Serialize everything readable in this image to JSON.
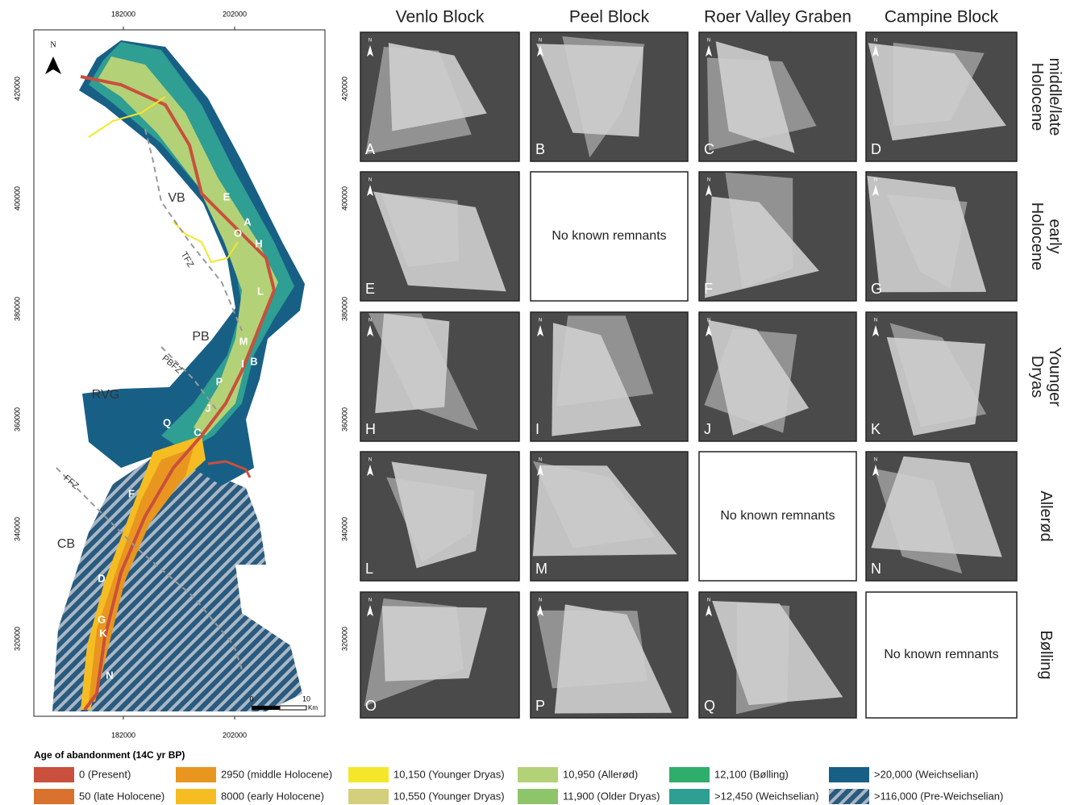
{
  "map": {
    "x_ticks": [
      182000,
      202000
    ],
    "y_ticks": [
      420000,
      400000,
      380000,
      360000,
      340000,
      320000
    ],
    "north": "N",
    "regions": [
      "VB",
      "PB",
      "RVG",
      "CB"
    ],
    "faults": [
      "TFZ",
      "PBFZ",
      "FFZ"
    ],
    "sites": [
      "E",
      "A",
      "O",
      "H",
      "L",
      "M",
      "I",
      "B",
      "P",
      "J",
      "Q",
      "C",
      "F",
      "D",
      "G",
      "K",
      "N"
    ],
    "scale": {
      "start": "0",
      "end": "10",
      "unit": "Km"
    }
  },
  "columns": [
    "Venlo Block",
    "Peel Block",
    "Roer Valley Graben",
    "Campine Block"
  ],
  "rows": [
    "middle/late Holocene",
    "early Holocene",
    "Younger Dryas",
    "Allerød",
    "Bølling"
  ],
  "panels": [
    [
      {
        "letter": "A"
      },
      {
        "letter": "B"
      },
      {
        "letter": "C"
      },
      {
        "letter": "D"
      }
    ],
    [
      {
        "letter": "E"
      },
      {
        "text": "No known remnants"
      },
      {
        "letter": "F"
      },
      {
        "letter": "G"
      }
    ],
    [
      {
        "letter": "H"
      },
      {
        "letter": "I"
      },
      {
        "letter": "J"
      },
      {
        "letter": "K"
      }
    ],
    [
      {
        "letter": "L"
      },
      {
        "letter": "M"
      },
      {
        "text": "No known remnants"
      },
      {
        "letter": "N"
      }
    ],
    [
      {
        "letter": "O"
      },
      {
        "letter": "P"
      },
      {
        "letter": "Q"
      },
      {
        "text": "No known remnants"
      }
    ]
  ],
  "legend": {
    "title": "Age of abandonment (14C yr BP)",
    "items": [
      {
        "label": "0 (Present)",
        "color": "#c9503c"
      },
      {
        "label": "50 (late Holocene)",
        "color": "#d9722e"
      },
      {
        "label": "2950 (middle Holocene)",
        "color": "#e8961f"
      },
      {
        "label": "8000 (early Holocene)",
        "color": "#f5bd22"
      },
      {
        "label": "10,150 (Younger Dryas)",
        "color": "#f4e72a"
      },
      {
        "label": "10,550 (Younger Dryas)",
        "color": "#d4cf7c"
      },
      {
        "label": "10,950 (Allerød)",
        "color": "#b3d177"
      },
      {
        "label": "11,900 (Older Dryas)",
        "color": "#8ec46a"
      },
      {
        "label": "12,100 (Bølling)",
        "color": "#2fae6b"
      },
      {
        "label": ">12,450 (Weichselian)",
        "color": "#2f9e93"
      },
      {
        "label": ">20,000 (Weichselian)",
        "color": "#185f86"
      },
      {
        "label": ">116,000 (Pre-Weichselian)",
        "color": "#2a5a7e"
      }
    ]
  }
}
